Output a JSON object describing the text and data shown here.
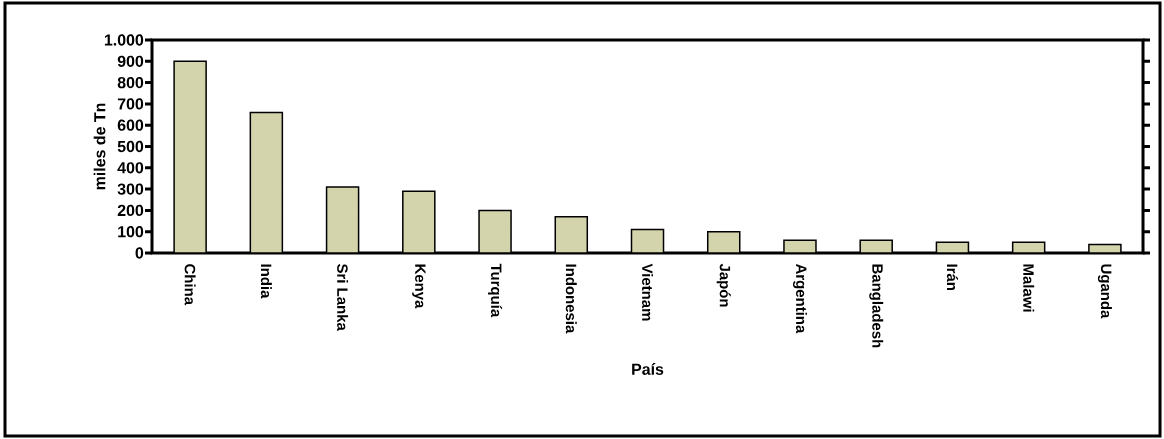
{
  "chart_data": {
    "type": "bar",
    "xlabel": "País",
    "ylabel": "miles de Tn",
    "categories": [
      "China",
      "India",
      "Sri Lanka",
      "Kenya",
      "Turquía",
      "Indonesia",
      "Vietnam",
      "Japón",
      "Argentina",
      "Bangladesh",
      "Irán",
      "Malawi",
      "Uganda"
    ],
    "values": [
      900,
      660,
      310,
      290,
      200,
      170,
      110,
      100,
      60,
      60,
      50,
      50,
      40
    ],
    "color": "#d4d4ac",
    "ylim": [
      0,
      1000
    ],
    "yticks": [
      0,
      100,
      200,
      300,
      400,
      500,
      600,
      700,
      800,
      900,
      {
        "value": 1000,
        "label": "1.000"
      }
    ],
    "grid": false
  }
}
